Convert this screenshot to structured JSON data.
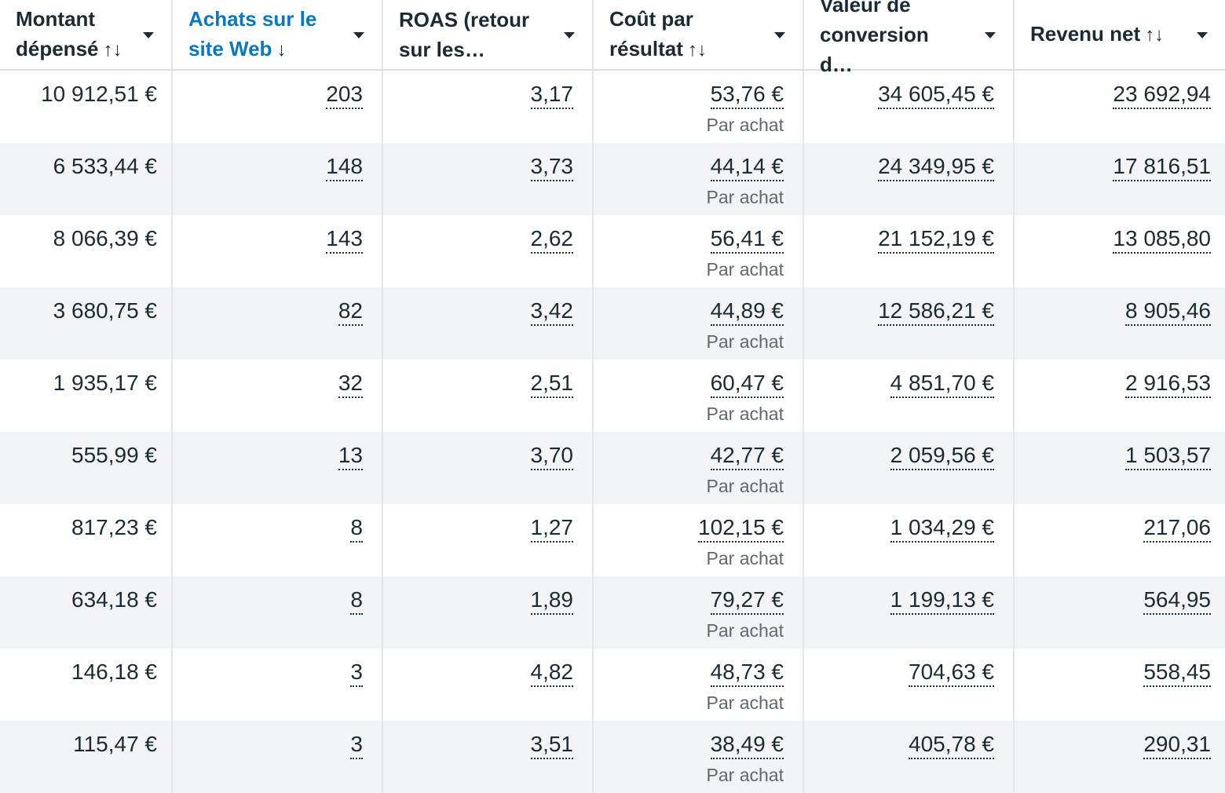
{
  "header": {
    "columns": [
      {
        "line1": "Montant",
        "line2": "dépensé",
        "sort": "↑↓"
      },
      {
        "line1": "Achats sur le",
        "line2": "site Web",
        "sort": "↓"
      },
      {
        "line1": "ROAS (retour",
        "line2": "sur les…",
        "sort": ""
      },
      {
        "line1": "Coût par",
        "line2": "résultat",
        "sort": "↑↓"
      },
      {
        "line1": "Valeur de",
        "line2": "conversion d…",
        "sort": ""
      },
      {
        "line1": "Revenu net",
        "line2": "",
        "sort": "↑↓"
      }
    ]
  },
  "cost_sub_label": "Par achat",
  "rows": [
    {
      "spend": "10 912,51 €",
      "purchases": "203",
      "roas": "3,17",
      "cost": "53,76 €",
      "conv_value": "34 605,45 €",
      "net": "23 692,94"
    },
    {
      "spend": "6 533,44 €",
      "purchases": "148",
      "roas": "3,73",
      "cost": "44,14 €",
      "conv_value": "24 349,95 €",
      "net": "17 816,51"
    },
    {
      "spend": "8 066,39 €",
      "purchases": "143",
      "roas": "2,62",
      "cost": "56,41 €",
      "conv_value": "21 152,19 €",
      "net": "13 085,80"
    },
    {
      "spend": "3 680,75 €",
      "purchases": "82",
      "roas": "3,42",
      "cost": "44,89 €",
      "conv_value": "12 586,21 €",
      "net": "8 905,46"
    },
    {
      "spend": "1 935,17 €",
      "purchases": "32",
      "roas": "2,51",
      "cost": "60,47 €",
      "conv_value": "4 851,70 €",
      "net": "2 916,53"
    },
    {
      "spend": "555,99 €",
      "purchases": "13",
      "roas": "3,70",
      "cost": "42,77 €",
      "conv_value": "2 059,56 €",
      "net": "1 503,57"
    },
    {
      "spend": "817,23 €",
      "purchases": "8",
      "roas": "1,27",
      "cost": "102,15 €",
      "conv_value": "1 034,29 €",
      "net": "217,06"
    },
    {
      "spend": "634,18 €",
      "purchases": "8",
      "roas": "1,89",
      "cost": "79,27 €",
      "conv_value": "1 199,13 €",
      "net": "564,95"
    },
    {
      "spend": "146,18 €",
      "purchases": "3",
      "roas": "4,82",
      "cost": "48,73 €",
      "conv_value": "704,63 €",
      "net": "558,45"
    },
    {
      "spend": "115,47 €",
      "purchases": "3",
      "roas": "3,51",
      "cost": "38,49 €",
      "conv_value": "405,78 €",
      "net": "290,31"
    }
  ],
  "colors": {
    "active_header": "#0a78be",
    "text": "#1c2b33",
    "muted": "#606770",
    "row_alt": "#f3f4f6"
  }
}
